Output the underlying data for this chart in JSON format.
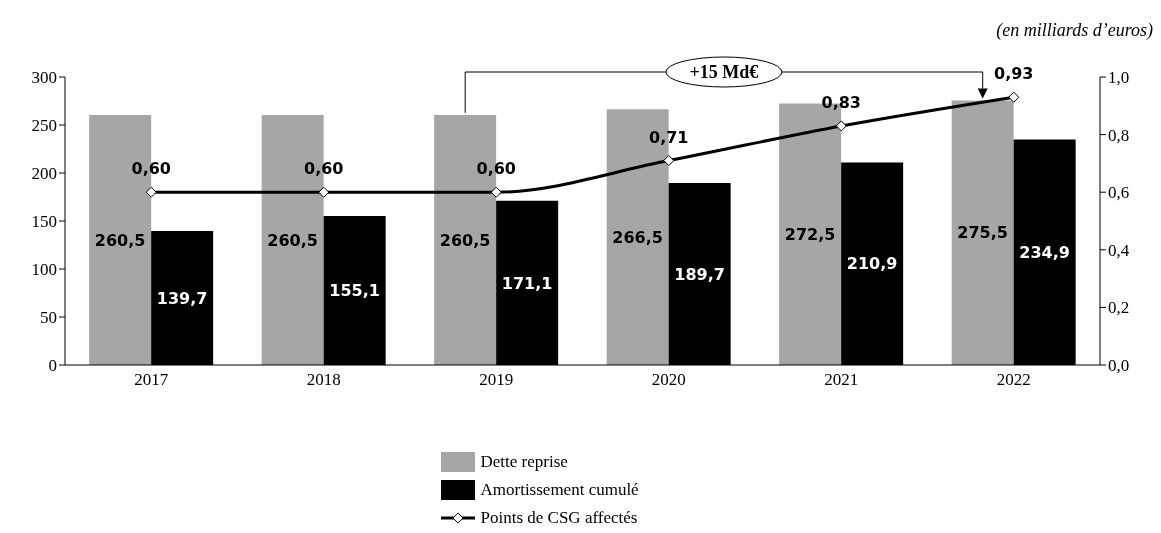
{
  "chart_data": {
    "type": "bar",
    "categories": [
      "2017",
      "2018",
      "2019",
      "2020",
      "2021",
      "2022"
    ],
    "series": [
      {
        "name": "Dette reprise",
        "color": "#a6a6a6",
        "values": [
          260.5,
          260.5,
          260.5,
          266.5,
          272.5,
          275.5
        ],
        "value_labels": [
          "260,5",
          "260,5",
          "260,5",
          "266,5",
          "272,5",
          "275,5"
        ]
      },
      {
        "name": "Amortissement cumulé",
        "color": "#000000",
        "values": [
          139.7,
          155.1,
          171.1,
          189.7,
          210.9,
          234.9
        ],
        "value_labels": [
          "139,7",
          "155,1",
          "171,1",
          "189,7",
          "210,9",
          "234,9"
        ]
      },
      {
        "name": "Points de CSG affectés",
        "type": "line",
        "axis": "y2",
        "color": "#000000",
        "marker": "diamond",
        "values": [
          0.6,
          0.6,
          0.6,
          0.71,
          0.83,
          0.93
        ],
        "value_labels": [
          "0,60",
          "0,60",
          "0,60",
          "0,71",
          "0,83",
          "0,93"
        ]
      }
    ],
    "ylim": [
      0,
      300
    ],
    "yticks": [
      0,
      50,
      100,
      150,
      200,
      250,
      300
    ],
    "y2lim": [
      0,
      1
    ],
    "y2ticks": [
      {
        "value": 0,
        "label": "0,0"
      },
      {
        "value": 0.2,
        "label": "0,2"
      },
      {
        "value": 0.4,
        "label": "0,4"
      },
      {
        "value": 0.6,
        "label": "0,6"
      },
      {
        "value": 0.8,
        "label": "0,8"
      },
      {
        "value": 1,
        "label": "1,0"
      }
    ],
    "annotations": [
      "(en milliards d’euros)",
      "+15 Md€"
    ],
    "legend": "bottom",
    "grid": false
  }
}
